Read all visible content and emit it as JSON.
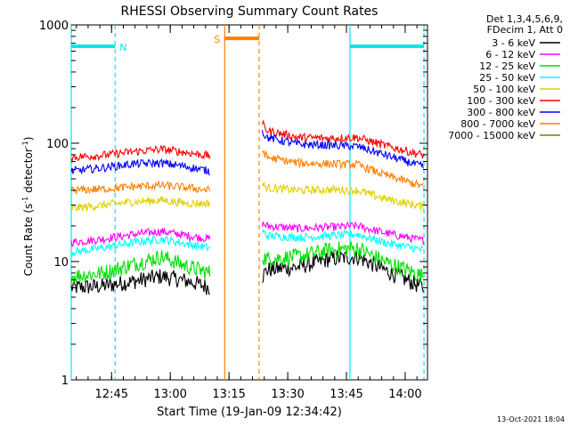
{
  "chart_data": {
    "type": "line",
    "title": "RHESSI Observing Summary Count Rates",
    "xlabel": "Start Time (19-Jan-09 12:34:42)",
    "ylabel_main": "Count Rate (s",
    "ylabel_sup1": "-1",
    "ylabel_mid": " detector",
    "ylabel_sup2": "-1",
    "ylabel_end": ")",
    "y_scale": "log",
    "ylim": [
      1,
      1000
    ],
    "y_ticks": [
      {
        "value": 1,
        "label": "1"
      },
      {
        "value": 10,
        "label": "10"
      },
      {
        "value": 100,
        "label": "100"
      },
      {
        "value": 1000,
        "label": "1000"
      }
    ],
    "x_unit": "minutes since 12:34:42",
    "xlim": [
      0,
      91
    ],
    "x_ticks": [
      {
        "value": 10.3,
        "label": "12:45"
      },
      {
        "value": 25.3,
        "label": "13:00"
      },
      {
        "value": 40.3,
        "label": "13:15"
      },
      {
        "value": 55.3,
        "label": "13:30"
      },
      {
        "value": 70.3,
        "label": "13:45"
      },
      {
        "value": 85.3,
        "label": "14:00"
      }
    ],
    "x_minor_step": 3,
    "legend_header": [
      "Det 1,3,4,5,6,9,",
      "FDecim 1, Att 0"
    ],
    "legend_placement": "top-right outside",
    "series": [
      {
        "name": "3 - 6 keV",
        "color": "#000000",
        "segments": [
          {
            "x": [
              0,
              8,
              16,
              23,
              30,
              35.5
            ],
            "y": [
              6.0,
              6.2,
              6.8,
              7.5,
              6.8,
              6.0
            ]
          },
          {
            "x": [
              48.8,
              50,
              58,
              66,
              73,
              80,
              90
            ],
            "y": [
              7.5,
              8.5,
              9.0,
              10.5,
              11.0,
              8.5,
              6.0
            ]
          }
        ]
      },
      {
        "name": "6 - 12 keV",
        "color": "#ff00ff",
        "segments": [
          {
            "x": [
              0,
              8,
              16,
              23,
              30,
              35.5
            ],
            "y": [
              14.5,
              15.5,
              17.0,
              18.0,
              16.5,
              15.5
            ]
          },
          {
            "x": [
              48.8,
              50,
              58,
              66,
              73,
              80,
              90
            ],
            "y": [
              21.0,
              20.0,
              19.0,
              19.5,
              20.0,
              17.5,
              15.0
            ]
          }
        ]
      },
      {
        "name": "12 - 25 keV",
        "color": "#00e000",
        "segments": [
          {
            "x": [
              0,
              8,
              16,
              23,
              30,
              35.5
            ],
            "y": [
              7.5,
              8.0,
              9.5,
              11.0,
              9.0,
              8.0
            ]
          },
          {
            "x": [
              48.8,
              50,
              58,
              66,
              73,
              80,
              90
            ],
            "y": [
              11.0,
              10.5,
              11.0,
              12.5,
              13.0,
              10.0,
              7.5
            ]
          }
        ]
      },
      {
        "name": "25 - 50 keV",
        "color": "#00ffff",
        "segments": [
          {
            "x": [
              0,
              8,
              16,
              23,
              30,
              35.5
            ],
            "y": [
              12.0,
              13.0,
              14.5,
              15.5,
              14.0,
              13.0
            ]
          },
          {
            "x": [
              48.8,
              50,
              58,
              66,
              73,
              80,
              90
            ],
            "y": [
              18.0,
              16.5,
              16.0,
              16.5,
              17.0,
              14.5,
              12.5
            ]
          }
        ]
      },
      {
        "name": "50 - 100 keV",
        "color": "#e0d000",
        "segments": [
          {
            "x": [
              0,
              8,
              16,
              23,
              30,
              35.5
            ],
            "y": [
              28.0,
              30.0,
              32.0,
              33.0,
              31.0,
              31.0
            ]
          },
          {
            "x": [
              48.8,
              50,
              58,
              66,
              73,
              80,
              90
            ],
            "y": [
              45.0,
              42.0,
              40.0,
              40.5,
              40.0,
              34.0,
              29.0
            ]
          }
        ]
      },
      {
        "name": "100 - 300 keV",
        "color": "#ff0000",
        "segments": [
          {
            "x": [
              0,
              8,
              16,
              23,
              30,
              35.5
            ],
            "y": [
              76.0,
              79.0,
              85.0,
              89.0,
              83.0,
              78.0
            ]
          },
          {
            "x": [
              48.8,
              50,
              58,
              66,
              73,
              80,
              90
            ],
            "y": [
              145.0,
              128.0,
              112.0,
              110.0,
              112.0,
              96.0,
              79.0
            ]
          }
        ]
      },
      {
        "name": "300 - 800 keV",
        "color": "#0000ff",
        "segments": [
          {
            "x": [
              0,
              8,
              16,
              23,
              30,
              35.5
            ],
            "y": [
              58.0,
              62.0,
              67.0,
              68.0,
              63.0,
              58.0
            ]
          },
          {
            "x": [
              48.8,
              50,
              58,
              66,
              73,
              80,
              90
            ],
            "y": [
              125.0,
              112.0,
              98.0,
              96.0,
              94.0,
              80.0,
              63.0
            ]
          }
        ]
      },
      {
        "name": "800 - 7000 keV",
        "color": "#ff8000",
        "segments": [
          {
            "x": [
              0,
              8,
              16,
              23,
              30,
              35.5
            ],
            "y": [
              40.0,
              41.0,
              43.0,
              44.0,
              42.0,
              40.0
            ]
          },
          {
            "x": [
              48.8,
              50,
              58,
              66,
              73,
              80,
              90
            ],
            "y": [
              88.0,
              76.0,
              68.0,
              67.0,
              66.0,
              54.0,
              43.0
            ]
          }
        ]
      },
      {
        "name": "7000 - 15000 keV",
        "color": "#708000",
        "segments": []
      }
    ],
    "flag_bars": [
      {
        "label": "N",
        "color": "#00e8e8",
        "x_start": 0,
        "x_end": 11.2,
        "y": 660
      },
      {
        "label": "",
        "color": "#00e8e8",
        "x_start": 71.2,
        "x_end": 90.1,
        "y": 660
      },
      {
        "label": "S",
        "color": "#ff8000",
        "x_start": 39.2,
        "x_end": 48.0,
        "y": 770
      }
    ],
    "vertical_markers": [
      {
        "color": "#00e8e8",
        "style": "solid",
        "x": 0
      },
      {
        "color": "#00e8e8",
        "style": "dashed",
        "x": 11.2
      },
      {
        "color": "#ff8000",
        "style": "solid",
        "x": 39.2
      },
      {
        "color": "#ff8000",
        "style": "dashed",
        "x": 48.0
      },
      {
        "color": "#00e8e8",
        "style": "solid",
        "x": 71.2
      },
      {
        "color": "#00e8e8",
        "style": "dashed",
        "x": 90.1
      }
    ],
    "grid": false
  },
  "footer_timestamp": "13-Oct-2021 18:04"
}
